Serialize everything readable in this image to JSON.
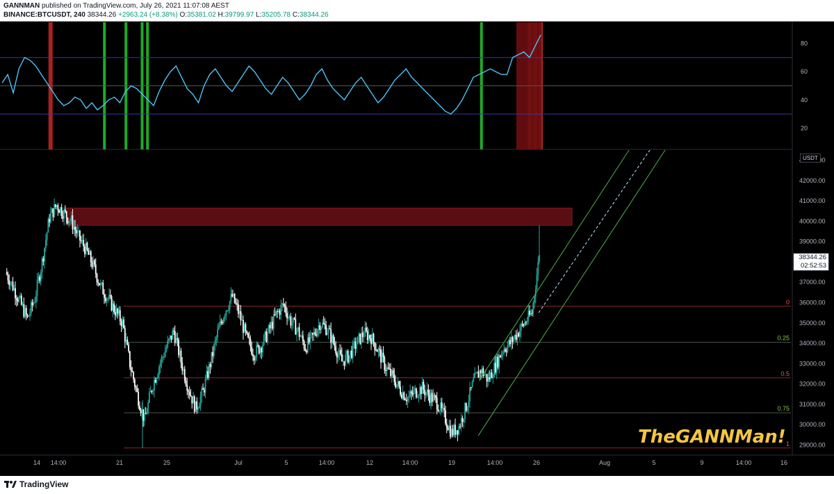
{
  "header": {
    "publisher": "GANNMAN",
    "published_text": " published on TradingView.com, July 26, 2021 11:07:08 AEST",
    "symbol": "BINANCE:BTCUSDT, 240",
    "last": "38344.26",
    "change": "+2963.24 (+8.38%)",
    "open_label": "O:",
    "open": "35381.02",
    "high_label": "H:",
    "high": "39799.97",
    "low_label": "L:",
    "low": "35205.78",
    "close_label": "C:",
    "close": "38344.26"
  },
  "footer": {
    "logo_text": "TradingView"
  },
  "watermark": "TheGANNMan!",
  "price_tag": {
    "price": "38344.26",
    "countdown": "02:52:53"
  },
  "colors": {
    "bull": "#26a69a",
    "bear": "#ffffff",
    "rsi": "#4fc3f7",
    "fib": "#8a2a2a",
    "channel": "#4caf50",
    "resistance": "#5a0d12",
    "buy_signal": "#1faa2a",
    "sell_signal": "#c62828"
  },
  "chart_data": [
    {
      "type": "line",
      "name": "oscillator",
      "ylim": [
        5,
        95
      ],
      "y_ticks": [
        "80",
        "60",
        "40",
        "20"
      ],
      "levels": [
        70,
        50,
        30
      ],
      "values": [
        52,
        58,
        45,
        62,
        70,
        68,
        64,
        58,
        52,
        46,
        40,
        36,
        38,
        42,
        40,
        34,
        38,
        33,
        36,
        40,
        42,
        38,
        46,
        50,
        48,
        44,
        40,
        36,
        46,
        54,
        60,
        64,
        56,
        48,
        44,
        38,
        50,
        58,
        62,
        56,
        50,
        46,
        52,
        58,
        64,
        60,
        54,
        48,
        44,
        50,
        56,
        52,
        46,
        40,
        44,
        50,
        58,
        62,
        54,
        48,
        44,
        40,
        46,
        52,
        56,
        50,
        44,
        38,
        42,
        48,
        54,
        58,
        62,
        56,
        52,
        48,
        44,
        40,
        36,
        32,
        30,
        34,
        40,
        48,
        56,
        58,
        60,
        62,
        60,
        58,
        58,
        70,
        72,
        74,
        70,
        78,
        86
      ],
      "buy_signals": [
        0.19,
        0.23,
        0.26,
        0.27,
        0.89
      ],
      "sell_signals": [
        0.09,
        0.98,
        0.99,
        1.0
      ]
    },
    {
      "type": "candlestick",
      "name": "BINANCE:BTCUSDT, 240",
      "ylim": [
        28500,
        43500
      ],
      "y_ticks": [
        "43000.00",
        "42000.00",
        "41000.00",
        "40000.00",
        "39000.00",
        "38000.00",
        "37000.00",
        "36000.00",
        "35000.00",
        "34000.00",
        "33000.00",
        "32000.00",
        "31000.00",
        "30000.00",
        "29000.00"
      ],
      "x_ticks": [
        "14",
        "14:00",
        "21",
        "25",
        "Jul",
        "5",
        "14:00",
        "12",
        "14:00",
        "19",
        "14:00",
        "26",
        "Aug",
        "5",
        "9",
        "14:00",
        "16"
      ],
      "close_path": [
        37500,
        36800,
        36000,
        35200,
        36200,
        38000,
        40200,
        40800,
        40400,
        40000,
        39200,
        38600,
        37800,
        36800,
        36200,
        35600,
        35000,
        33000,
        31500,
        30200,
        31800,
        32900,
        33800,
        34600,
        33100,
        31800,
        30800,
        31600,
        33000,
        34500,
        35600,
        36300,
        35400,
        34200,
        33500,
        33900,
        34600,
        35400,
        35900,
        35100,
        34600,
        33800,
        34300,
        35000,
        34700,
        33900,
        33100,
        33400,
        34000,
        34500,
        34300,
        33600,
        32800,
        32300,
        31700,
        31300,
        31600,
        31800,
        31400,
        31100,
        30400,
        29600,
        29900,
        30900,
        32100,
        32700,
        32200,
        32900,
        33700,
        34000,
        34500,
        35000,
        35500,
        38344
      ]
    }
  ],
  "fib_levels": [
    {
      "label": "0",
      "price": 35820
    },
    {
      "label": "0.25",
      "price": 34050
    },
    {
      "label": "0.5",
      "price": 32300
    },
    {
      "label": "0.75",
      "price": 30580
    },
    {
      "label": "1",
      "price": 28850
    }
  ],
  "price_axis_unit": "USDT"
}
